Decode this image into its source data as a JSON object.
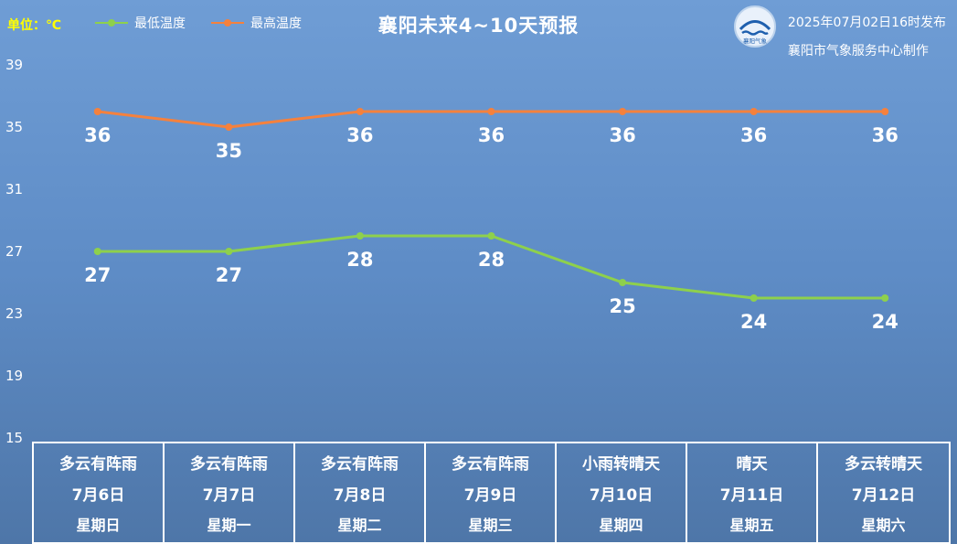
{
  "header": {
    "unit_label": "单位：℃",
    "title": "襄阳未来4~10天预报",
    "publish_time": "2025年07月02日16时发布",
    "producer": "襄阳市气象服务中心制作",
    "logo_name": "襄阳气象"
  },
  "legend": {
    "low_label": "最低温度",
    "high_label": "最高温度"
  },
  "colors": {
    "background_top": "#6f9dd5",
    "background_bottom": "#4e76a8",
    "high_line": "#f5813d",
    "low_line": "#8ed04c",
    "unit_text": "#ffff00",
    "grid_border": "#ffffff"
  },
  "chart_data": {
    "type": "line",
    "title": "襄阳未来4~10天预报",
    "ylabel": "℃",
    "ylim": [
      15,
      40
    ],
    "yticks": [
      39,
      35,
      31,
      27,
      23,
      19,
      15
    ],
    "grid": false,
    "legend_position": "top-left",
    "categories": [
      "7月6日",
      "7月7日",
      "7月8日",
      "7月9日",
      "7月10日",
      "7月11日",
      "7月12日"
    ],
    "weekdays": [
      "星期日",
      "星期一",
      "星期二",
      "星期三",
      "星期四",
      "星期五",
      "星期六"
    ],
    "conditions": [
      "多云有阵雨",
      "多云有阵雨",
      "多云有阵雨",
      "多云有阵雨",
      "小雨转晴天",
      "晴天",
      "多云转晴天"
    ],
    "series": [
      {
        "name": "最高温度",
        "key": "high",
        "color": "#f5813d",
        "values": [
          36,
          35,
          36,
          36,
          36,
          36,
          36
        ]
      },
      {
        "name": "最低温度",
        "key": "low",
        "color": "#8ed04c",
        "values": [
          27,
          27,
          28,
          28,
          25,
          24,
          24
        ]
      }
    ]
  }
}
